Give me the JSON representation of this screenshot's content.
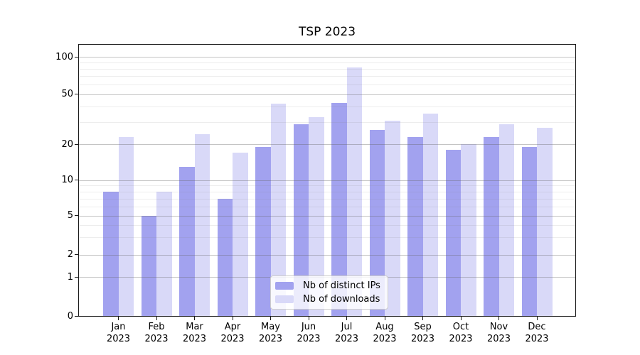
{
  "title": "TSP 2023",
  "chart_data": {
    "type": "bar",
    "title": "TSP 2023",
    "categories": [
      "Jan",
      "Feb",
      "Mar",
      "Apr",
      "May",
      "Jun",
      "Jul",
      "Aug",
      "Sep",
      "Oct",
      "Nov",
      "Dec"
    ],
    "category_year": "2023",
    "series": [
      {
        "name": "Nb of distinct IPs",
        "color": "#a2a2ef",
        "values": [
          8,
          5,
          13,
          7,
          19,
          29,
          43,
          26,
          23,
          18,
          23,
          19
        ]
      },
      {
        "name": "Nb of downloads",
        "color": "#d9d9f8",
        "values": [
          23,
          8,
          24,
          17,
          42,
          33,
          82,
          31,
          35,
          20,
          29,
          27
        ]
      }
    ],
    "xlabel": "",
    "ylabel": "",
    "y_axis": {
      "scale": "symlog",
      "ticks": [
        0,
        1,
        2,
        5,
        10,
        20,
        50,
        100
      ],
      "minor_ticks": [
        3,
        4,
        6,
        7,
        8,
        9,
        30,
        40,
        60,
        70,
        80,
        90
      ],
      "range": [
        0,
        127
      ]
    },
    "grid": true,
    "legend_position": "lower center"
  }
}
